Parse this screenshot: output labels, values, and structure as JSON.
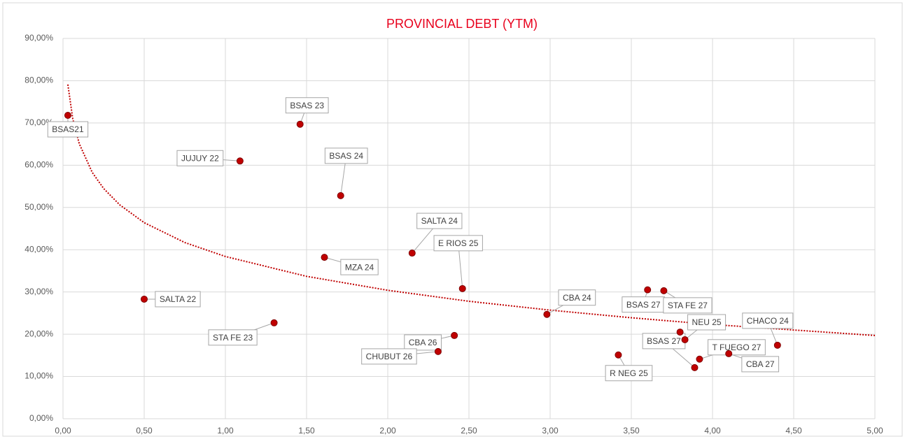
{
  "chart_data": {
    "type": "scatter",
    "title": "PROVINCIAL DEBT (YTM)",
    "series": [
      {
        "color": "#c00000",
        "labels": [
          "BSAS21",
          "SALTA 22",
          "JUJUY 22",
          "STA FE 23",
          "BSAS 23",
          "BSAS 24",
          "MZA 24",
          "SALTA 24",
          "E  RIOS 25",
          "CBA 26",
          "CHUBUT 26",
          "CBA 24",
          "BSAS 27",
          "STA FE 27",
          null,
          "NEU 25",
          "CHACO 24",
          "R NEG 25",
          "BSAS 27",
          "T FUEGO 27",
          "CBA 27"
        ],
        "x": [
          0.03,
          0.5,
          1.09,
          1.3,
          1.46,
          1.71,
          1.61,
          2.15,
          2.46,
          2.41,
          2.31,
          2.98,
          3.6,
          3.7,
          3.8,
          3.83,
          4.4,
          3.42,
          3.89,
          3.92,
          4.1
        ],
        "values": [
          71.8,
          28.3,
          61.0,
          22.7,
          69.7,
          52.8,
          38.2,
          39.2,
          30.8,
          19.7,
          15.9,
          24.7,
          30.5,
          30.3,
          20.5,
          18.7,
          17.4,
          15.1,
          12.1,
          14.1,
          15.4
        ]
      }
    ],
    "trendline": {
      "color": "#c00000",
      "x": [
        0.03,
        0.06,
        0.1,
        0.18,
        0.25,
        0.35,
        0.5,
        0.75,
        1,
        1.5,
        2,
        2.5,
        3,
        3.5,
        4,
        4.5,
        5
      ],
      "values": [
        79.1,
        71.0,
        65.1,
        58.3,
        54.5,
        50.6,
        46.4,
        41.7,
        38.4,
        33.7,
        30.4,
        27.8,
        25.7,
        23.9,
        22.3,
        21.0,
        19.7
      ]
    },
    "xlim": [
      0,
      5
    ],
    "ylim": [
      0,
      90
    ],
    "xticks": [
      {
        "value": 0,
        "label": "0,00"
      },
      {
        "value": 0.5,
        "label": "0,50"
      },
      {
        "value": 1,
        "label": "1,00"
      },
      {
        "value": 1.5,
        "label": "1,50"
      },
      {
        "value": 2,
        "label": "2,00"
      },
      {
        "value": 2.5,
        "label": "2,50"
      },
      {
        "value": 3,
        "label": "3,00"
      },
      {
        "value": 3.5,
        "label": "3,50"
      },
      {
        "value": 4,
        "label": "4,00"
      },
      {
        "value": 4.5,
        "label": "4,50"
      },
      {
        "value": 5,
        "label": "5,00"
      }
    ],
    "yticks": [
      {
        "value": 0,
        "label": "0,00%"
      },
      {
        "value": 10,
        "label": "10,00%"
      },
      {
        "value": 20,
        "label": "20,00%"
      },
      {
        "value": 30,
        "label": "30,00%"
      },
      {
        "value": 40,
        "label": "40,00%"
      },
      {
        "value": 50,
        "label": "50,00%"
      },
      {
        "value": 60,
        "label": "60,00%"
      },
      {
        "value": 70,
        "label": "70,00%"
      },
      {
        "value": 80,
        "label": "80,00%"
      },
      {
        "value": 90,
        "label": "90,00%"
      }
    ],
    "grid": true
  }
}
